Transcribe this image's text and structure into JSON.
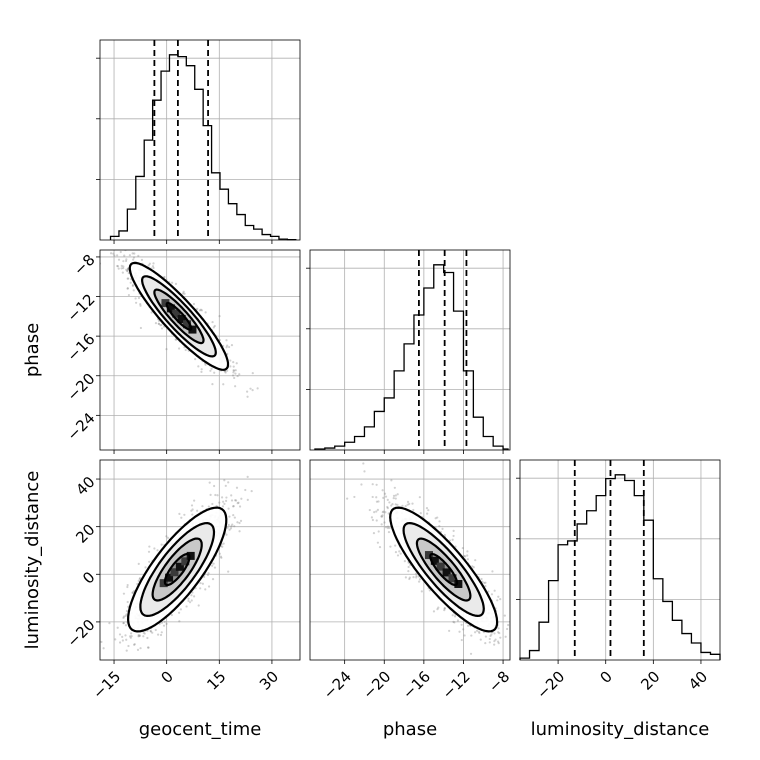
{
  "chart_data": {
    "type": "corner",
    "parameters": [
      "geocent_time",
      "phase",
      "luminosity_distance"
    ],
    "axis_labels": {
      "geocent_time": "geocent_time",
      "phase": "phase",
      "luminosity_distance": "luminosity_distance"
    },
    "ranges": {
      "geocent_time": [
        -19,
        38
      ],
      "phase": [
        -27.5,
        -7.3
      ],
      "luminosity_distance": [
        -36,
        48
      ]
    },
    "ticks": {
      "geocent_time": {
        "values": [
          -15,
          0,
          15,
          30
        ],
        "labels": [
          "−15",
          "0",
          "15",
          "30"
        ]
      },
      "phase": {
        "values": [
          -24,
          -20,
          -16,
          -12,
          -8
        ],
        "labels": [
          "−24",
          "−20",
          "−16",
          "−12",
          "−8"
        ]
      },
      "luminosity_distance": {
        "values": [
          -20,
          0,
          20,
          40
        ],
        "labels": [
          "−20",
          "0",
          "20",
          "40"
        ]
      }
    },
    "histograms": {
      "geocent_time": {
        "bin_edges": [
          -16,
          -13.6,
          -11.2,
          -8.8,
          -6.4,
          -4,
          -1.6,
          0.8,
          3.2,
          5.6,
          8,
          10.4,
          12.8,
          15.2,
          17.6,
          20,
          22.4,
          24.8,
          27.2,
          29.6,
          32,
          34.4,
          36.8
        ],
        "counts": [
          0.02,
          0.05,
          0.17,
          0.35,
          0.55,
          0.77,
          0.93,
          1.02,
          1.01,
          0.96,
          0.83,
          0.63,
          0.37,
          0.28,
          0.2,
          0.14,
          0.08,
          0.06,
          0.03,
          0.02,
          0.005,
          0.002
        ],
        "quantiles": [
          -3.5,
          3.2,
          11.8
        ]
      },
      "phase": {
        "bin_edges": [
          -27,
          -26,
          -25,
          -24,
          -23,
          -22,
          -21,
          -20,
          -19,
          -18,
          -17,
          -16,
          -15,
          -14,
          -13,
          -12,
          -11,
          -10,
          -9,
          -8,
          -7.5
        ],
        "counts": [
          0.005,
          0.01,
          0.02,
          0.04,
          0.07,
          0.12,
          0.2,
          0.27,
          0.41,
          0.55,
          0.7,
          0.84,
          0.96,
          0.92,
          0.72,
          0.41,
          0.17,
          0.07,
          0.02,
          0.005
        ],
        "quantiles": [
          -16.5,
          -13.9,
          -11.7
        ]
      },
      "luminosity_distance": {
        "bin_edges": [
          -36,
          -32,
          -28,
          -24,
          -20,
          -16,
          -12,
          -8,
          -4,
          0,
          4,
          8,
          12,
          16,
          20,
          24,
          28,
          32,
          36,
          40,
          44,
          48
        ],
        "counts": [
          0.01,
          0.05,
          0.2,
          0.42,
          0.61,
          0.63,
          0.72,
          0.79,
          0.87,
          0.96,
          0.98,
          0.95,
          0.87,
          0.74,
          0.43,
          0.31,
          0.21,
          0.14,
          0.09,
          0.04,
          0.03
        ],
        "quantiles": [
          -13,
          2,
          16
        ]
      }
    },
    "pairs": [
      {
        "x": "geocent_time",
        "y": "phase",
        "mean": [
          3.5,
          -14
        ],
        "sd": [
          7,
          2.7
        ],
        "corr": -0.9,
        "contour_levels_sigma": [
          0.5,
          1,
          1.5,
          2
        ]
      },
      {
        "x": "geocent_time",
        "y": "luminosity_distance",
        "mean": [
          3,
          2
        ],
        "sd": [
          7,
          13
        ],
        "corr": 0.8,
        "contour_levels_sigma": [
          0.5,
          1,
          1.5,
          2
        ]
      },
      {
        "x": "phase",
        "y": "luminosity_distance",
        "mean": [
          -14,
          2
        ],
        "sd": [
          2.7,
          13
        ],
        "corr": -0.85,
        "contour_levels_sigma": [
          0.5,
          1,
          1.5,
          2
        ]
      }
    ],
    "grid": true,
    "colormap": "greys",
    "line_color": "#000000"
  }
}
